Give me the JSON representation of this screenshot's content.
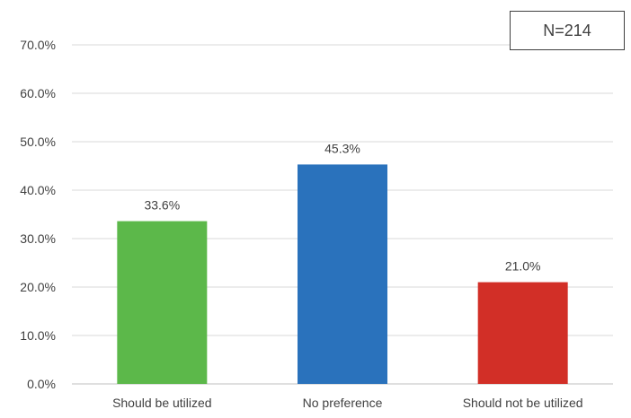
{
  "annotation": {
    "text": "N=214"
  },
  "colors": {
    "grid": "#d9d9d9",
    "text": "#404040"
  },
  "chart_data": {
    "type": "bar",
    "title": "",
    "xlabel": "",
    "ylabel": "",
    "categories": [
      "Should be utilized",
      "No preference",
      "Should not be utilized"
    ],
    "values": [
      33.6,
      45.3,
      21.0
    ],
    "value_labels": [
      "33.6%",
      "45.3%",
      "21.0%"
    ],
    "bar_colors": [
      "#5cb84a",
      "#2a72bc",
      "#d22f27"
    ],
    "ylim": [
      0,
      70
    ],
    "yticks": [
      0,
      10,
      20,
      30,
      40,
      50,
      60,
      70
    ],
    "ytick_labels": [
      "0.0%",
      "10.0%",
      "20.0%",
      "30.0%",
      "40.0%",
      "50.0%",
      "60.0%",
      "70.0%"
    ],
    "grid": true,
    "legend": "none"
  }
}
